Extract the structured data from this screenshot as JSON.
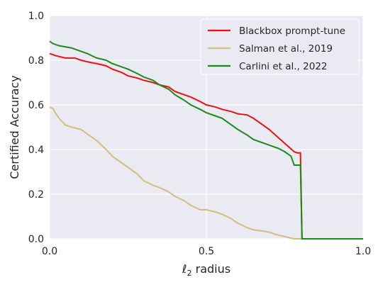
{
  "chart_data": {
    "type": "line",
    "title": "",
    "xlabel_prefix": "ℓ",
    "xlabel_sub": "2",
    "xlabel_suffix": " radius",
    "ylabel": "Certified Accuracy",
    "xlim": [
      0,
      1
    ],
    "ylim": [
      0,
      1
    ],
    "xticks": [
      "0.0",
      "0.5",
      "1.0"
    ],
    "xtick_values": [
      0,
      0.5,
      1
    ],
    "yticks": [
      "0.0",
      "0.2",
      "0.4",
      "0.6",
      "0.8",
      "1.0"
    ],
    "ytick_values": [
      0,
      0.2,
      0.4,
      0.6,
      0.8,
      1.0
    ],
    "grid": true,
    "legend_position": "top-right",
    "series": [
      {
        "name": "Blackbox prompt-tune",
        "color": "#ee1111",
        "x": [
          0.0,
          0.02,
          0.05,
          0.08,
          0.1,
          0.13,
          0.15,
          0.18,
          0.2,
          0.23,
          0.25,
          0.28,
          0.3,
          0.33,
          0.35,
          0.38,
          0.4,
          0.43,
          0.45,
          0.48,
          0.5,
          0.53,
          0.55,
          0.58,
          0.6,
          0.63,
          0.65,
          0.68,
          0.7,
          0.72,
          0.74,
          0.76,
          0.78,
          0.79,
          0.8,
          0.805,
          0.81,
          1.0
        ],
        "y": [
          0.83,
          0.82,
          0.81,
          0.81,
          0.8,
          0.79,
          0.785,
          0.775,
          0.76,
          0.745,
          0.73,
          0.72,
          0.71,
          0.7,
          0.69,
          0.68,
          0.66,
          0.645,
          0.635,
          0.615,
          0.6,
          0.59,
          0.58,
          0.57,
          0.56,
          0.555,
          0.54,
          0.51,
          0.49,
          0.465,
          0.44,
          0.415,
          0.39,
          0.385,
          0.385,
          0.0,
          0.0,
          0.0
        ]
      },
      {
        "name": "Salman et al., 2019",
        "color": "#d4bd7e",
        "x": [
          0.0,
          0.01,
          0.02,
          0.03,
          0.05,
          0.07,
          0.1,
          0.12,
          0.15,
          0.18,
          0.2,
          0.22,
          0.25,
          0.28,
          0.3,
          0.33,
          0.35,
          0.38,
          0.4,
          0.43,
          0.45,
          0.48,
          0.5,
          0.53,
          0.55,
          0.58,
          0.6,
          0.63,
          0.65,
          0.68,
          0.7,
          0.72,
          0.75,
          0.77,
          0.78,
          0.8,
          1.0
        ],
        "y": [
          0.59,
          0.585,
          0.56,
          0.54,
          0.51,
          0.5,
          0.49,
          0.47,
          0.44,
          0.4,
          0.37,
          0.35,
          0.32,
          0.29,
          0.26,
          0.24,
          0.23,
          0.21,
          0.19,
          0.17,
          0.15,
          0.13,
          0.13,
          0.12,
          0.11,
          0.09,
          0.07,
          0.05,
          0.04,
          0.035,
          0.03,
          0.02,
          0.01,
          0.003,
          0.0,
          0.0,
          0.0
        ]
      },
      {
        "name": "Carlini et al., 2022",
        "color": "#1b8a1b",
        "x": [
          0.0,
          0.01,
          0.03,
          0.05,
          0.07,
          0.1,
          0.12,
          0.15,
          0.18,
          0.2,
          0.23,
          0.25,
          0.28,
          0.3,
          0.33,
          0.35,
          0.38,
          0.4,
          0.43,
          0.45,
          0.48,
          0.5,
          0.53,
          0.55,
          0.58,
          0.6,
          0.63,
          0.65,
          0.68,
          0.7,
          0.73,
          0.75,
          0.77,
          0.78,
          0.79,
          0.8,
          0.805,
          1.0
        ],
        "y": [
          0.885,
          0.875,
          0.865,
          0.86,
          0.855,
          0.84,
          0.83,
          0.81,
          0.8,
          0.785,
          0.77,
          0.76,
          0.74,
          0.725,
          0.71,
          0.69,
          0.67,
          0.645,
          0.62,
          0.6,
          0.58,
          0.565,
          0.55,
          0.54,
          0.51,
          0.49,
          0.465,
          0.445,
          0.43,
          0.42,
          0.405,
          0.39,
          0.37,
          0.33,
          0.33,
          0.33,
          0.0,
          0.0
        ]
      }
    ]
  }
}
